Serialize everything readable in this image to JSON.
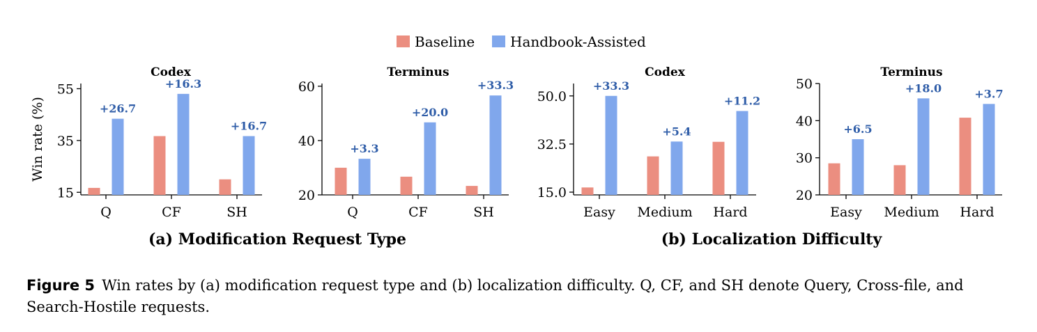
{
  "legend": {
    "baseline_label": "Baseline",
    "assisted_label": "Handbook-Assisted"
  },
  "colors": {
    "baseline": "#EB8E80",
    "assisted": "#80A7EC",
    "delta_text": "#2F5DA8"
  },
  "group_titles": {
    "a": "(a) Modification Request Type",
    "b": "(b) Localization Difficulty"
  },
  "caption": {
    "label": "Figure 5",
    "text": "Win rates by (a) modification request type and (b) localization difficulty. Q, CF, and SH denote Query, Cross-file, and Search-Hostile requests."
  },
  "chart_data": [
    {
      "type": "bar",
      "title": "Codex",
      "ylabel": "Win rate (%)",
      "categories": [
        "Q",
        "CF",
        "SH"
      ],
      "ylim": [
        14,
        57
      ],
      "yticks": [
        "15",
        "35",
        "55"
      ],
      "series": [
        {
          "name": "Baseline",
          "values": [
            16.7,
            36.7,
            20.0
          ]
        },
        {
          "name": "Handbook-Assisted",
          "values": [
            43.4,
            53.0,
            36.7
          ]
        }
      ],
      "deltas": [
        "+26.7",
        "+16.3",
        "+16.7"
      ]
    },
    {
      "type": "bar",
      "title": "Terminus",
      "ylabel": "",
      "categories": [
        "Q",
        "CF",
        "SH"
      ],
      "ylim": [
        20,
        61
      ],
      "yticks": [
        "20",
        "40",
        "60"
      ],
      "series": [
        {
          "name": "Baseline",
          "values": [
            30.0,
            26.7,
            23.3
          ]
        },
        {
          "name": "Handbook-Assisted",
          "values": [
            33.3,
            46.7,
            56.6
          ]
        }
      ],
      "deltas": [
        "+3.3",
        "+20.0",
        "+33.3"
      ]
    },
    {
      "type": "bar",
      "title": "Codex",
      "ylabel": "",
      "categories": [
        "Easy",
        "Medium",
        "Hard"
      ],
      "ylim": [
        14,
        54.5
      ],
      "yticks": [
        "15.0",
        "32.5",
        "50.0"
      ],
      "series": [
        {
          "name": "Baseline",
          "values": [
            16.7,
            28.0,
            33.3
          ]
        },
        {
          "name": "Handbook-Assisted",
          "values": [
            50.0,
            33.4,
            44.5
          ]
        }
      ],
      "deltas": [
        "+33.3",
        "+5.4",
        "+11.2"
      ]
    },
    {
      "type": "bar",
      "title": "Terminus",
      "ylabel": "",
      "categories": [
        "Easy",
        "Medium",
        "Hard"
      ],
      "ylim": [
        20,
        50
      ],
      "yticks": [
        "20",
        "30",
        "40",
        "50"
      ],
      "series": [
        {
          "name": "Baseline",
          "values": [
            28.5,
            28.0,
            40.8
          ]
        },
        {
          "name": "Handbook-Assisted",
          "values": [
            35.0,
            46.0,
            44.5
          ]
        }
      ],
      "deltas": [
        "+6.5",
        "+18.0",
        "+3.7"
      ]
    }
  ]
}
